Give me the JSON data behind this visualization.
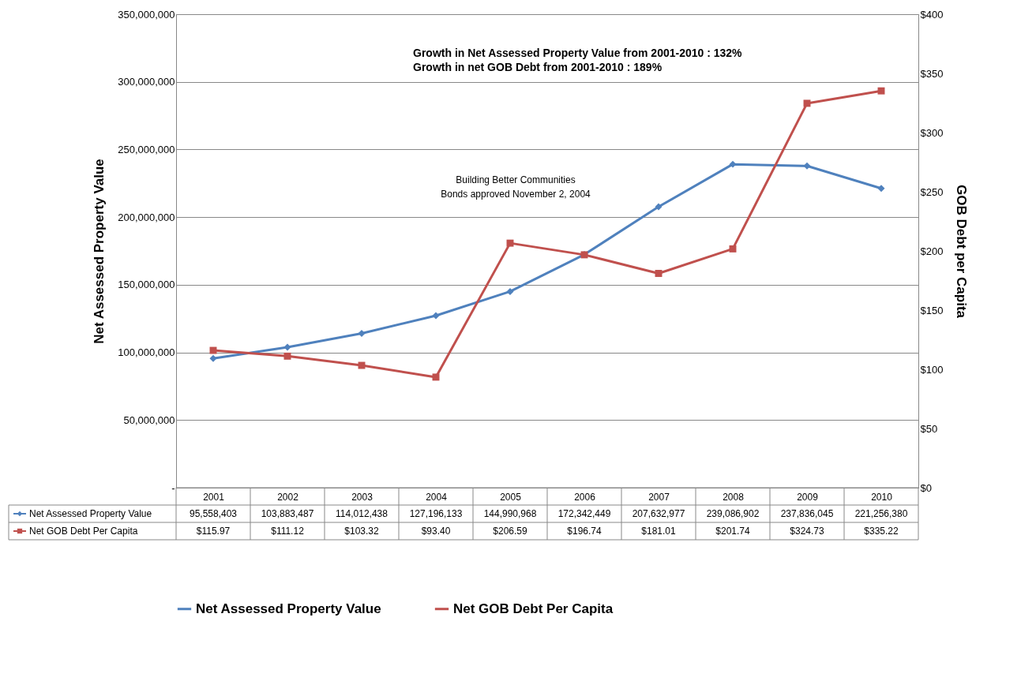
{
  "chart_data": {
    "type": "line",
    "categories": [
      "2001",
      "2002",
      "2003",
      "2004",
      "2005",
      "2006",
      "2007",
      "2008",
      "2009",
      "2010"
    ],
    "series": [
      {
        "name": "Net Assessed Property Value",
        "color": "#4f81bd",
        "marker": "diamond",
        "axis": "y",
        "values": [
          95558403,
          103883487,
          114012438,
          127196133,
          144990968,
          172342449,
          207632977,
          239086902,
          237836045,
          221256380
        ],
        "value_labels": [
          "95,558,403",
          "103,883,487",
          "114,012,438",
          "127,196,133",
          "144,990,968",
          "172,342,449",
          "207,632,977",
          "239,086,902",
          "237,836,045",
          "221,256,380"
        ]
      },
      {
        "name": "Net GOB Debt Per Capita",
        "color": "#c0504d",
        "marker": "square",
        "axis": "y2",
        "values": [
          115.97,
          111.12,
          103.32,
          93.4,
          206.59,
          196.74,
          181.01,
          201.74,
          324.73,
          335.22
        ],
        "value_labels": [
          "$115.97",
          "$111.12",
          "$103.32",
          "$93.40",
          "$206.59",
          "$196.74",
          "$181.01",
          "$201.74",
          "$324.73",
          "$335.22"
        ]
      }
    ],
    "ylabel": "Net Assessed Property Value",
    "y2label": "GOB Debt per Capita",
    "ylim": [
      0,
      350000000
    ],
    "yticks": [
      {
        "value": 0,
        "label": "-"
      },
      {
        "value": 50000000,
        "label": "50,000,000"
      },
      {
        "value": 100000000,
        "label": "100,000,000"
      },
      {
        "value": 150000000,
        "label": "150,000,000"
      },
      {
        "value": 200000000,
        "label": "200,000,000"
      },
      {
        "value": 250000000,
        "label": "250,000,000"
      },
      {
        "value": 300000000,
        "label": "300,000,000"
      },
      {
        "value": 350000000,
        "label": "350,000,000"
      }
    ],
    "y2lim": [
      0,
      400
    ],
    "y2ticks": [
      {
        "value": 0,
        "label": "$0"
      },
      {
        "value": 50,
        "label": "$50"
      },
      {
        "value": 100,
        "label": "$100"
      },
      {
        "value": 150,
        "label": "$150"
      },
      {
        "value": 200,
        "label": "$200"
      },
      {
        "value": 250,
        "label": "$250"
      },
      {
        "value": 300,
        "label": "$300"
      },
      {
        "value": 350,
        "label": "$350"
      },
      {
        "value": 400,
        "label": "$400"
      }
    ],
    "annotations": [
      "Growth in Net Assessed Property Value from 2001-2010 : 132%",
      "Growth in net GOB Debt from 2001-2010 : 189%",
      "Building Better Communities Bonds approved November 2, 2004"
    ],
    "grid": "y",
    "legend": "bottom",
    "line_style": "solid"
  }
}
